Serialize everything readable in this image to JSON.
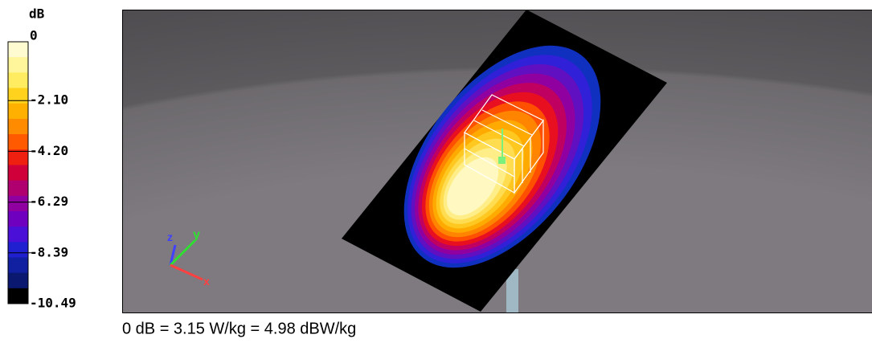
{
  "colorbar": {
    "title": "dB",
    "labels": [
      "0",
      "-2.10",
      "-4.20",
      "-6.29",
      "-8.39",
      "-10.49"
    ]
  },
  "axes": {
    "z": "z",
    "y": "y",
    "x": "x"
  },
  "caption": "0 dB = 3.15 W/kg = 4.98 dBW/kg"
}
